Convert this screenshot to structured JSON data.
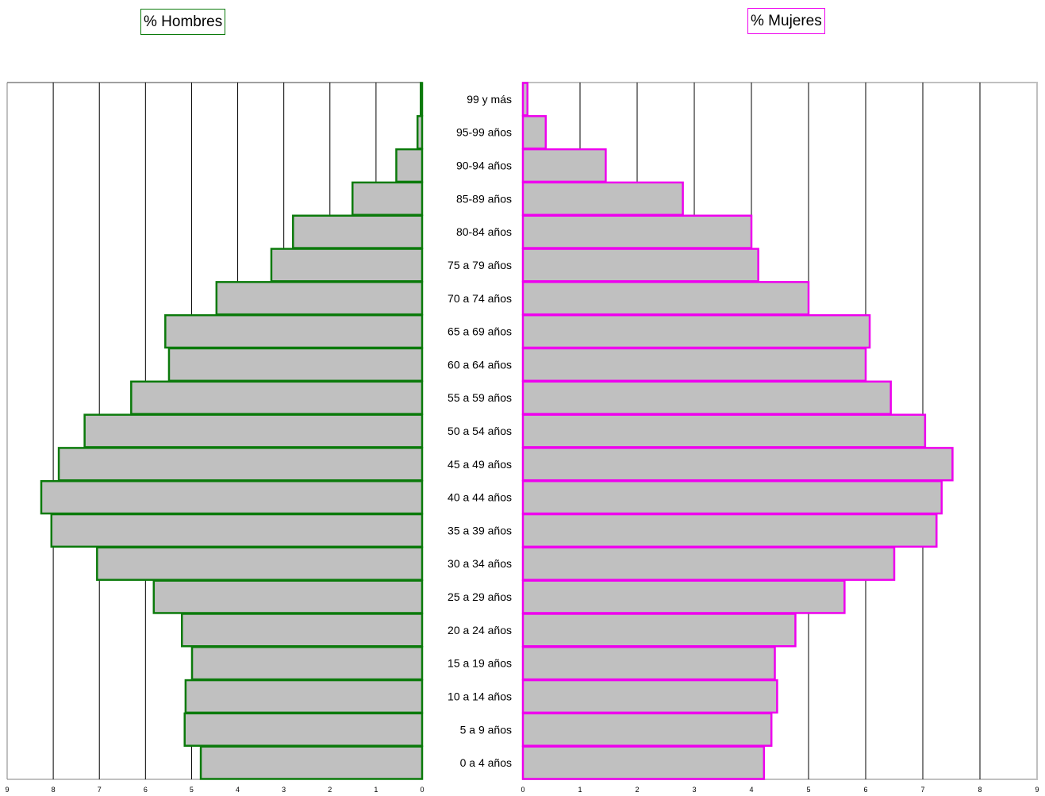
{
  "colors": {
    "men_border": "#0b7a0b",
    "women_border": "#ee00ee",
    "bar_fill": "#c0c0c0",
    "grid": "#000000",
    "frame": "#c0c0c0"
  },
  "chart_data": [
    {
      "type": "bar",
      "orientation": "horizontal",
      "direction": "right-to-left",
      "title": "% Hombres",
      "categories": [
        "0 a 4 años",
        "5 a 9 años",
        "10 a 14 años",
        "15 a 19 años",
        "20 a 24 años",
        "25 a 29 años",
        "30 a 34 años",
        "35 a 39 años",
        "40 a 44 años",
        "45 a 49 años",
        "50 a 54 años",
        "55 a 59 años",
        "60 a 64 años",
        "65 a 69 años",
        "70 a 74 años",
        "75 a 79 años",
        "80-84 años",
        "85-89 años",
        "90-94 años",
        "95-99 años",
        "99 y más"
      ],
      "values": [
        4.8,
        5.15,
        5.13,
        4.99,
        5.21,
        5.82,
        7.05,
        8.04,
        8.26,
        7.88,
        7.32,
        6.31,
        5.49,
        5.57,
        4.46,
        3.27,
        2.8,
        1.51,
        0.56,
        0.1,
        0.03
      ],
      "xlim": [
        0,
        9
      ],
      "ticks": [
        "0",
        "1",
        "2",
        "3",
        "4",
        "5",
        "6",
        "7",
        "8",
        "9"
      ],
      "grid": true
    },
    {
      "type": "bar",
      "orientation": "horizontal",
      "direction": "left-to-right",
      "title": "% Mujeres",
      "categories": [
        "0 a 4 años",
        "5 a 9 años",
        "10 a 14 años",
        "15 a 19 años",
        "20 a 24 años",
        "25 a 29 años",
        "30 a 34 años",
        "35 a 39 años",
        "40 a 44 años",
        "45 a 49 años",
        "50 a 54 años",
        "55 a 59 años",
        "60 a 64 años",
        "65 a 69 años",
        "70 a 74 años",
        "75 a 79 años",
        "80-84 años",
        "85-89 años",
        "90-94 años",
        "95-99 años",
        "99 y más"
      ],
      "values": [
        4.22,
        4.35,
        4.45,
        4.41,
        4.77,
        5.63,
        6.5,
        7.24,
        7.33,
        7.52,
        7.04,
        6.44,
        6.0,
        6.07,
        5.0,
        4.12,
        4.0,
        2.8,
        1.45,
        0.4,
        0.08
      ],
      "xlim": [
        0,
        9
      ],
      "ticks": [
        "0",
        "1",
        "2",
        "3",
        "4",
        "5",
        "6",
        "7",
        "8",
        "9"
      ],
      "grid": true
    }
  ]
}
